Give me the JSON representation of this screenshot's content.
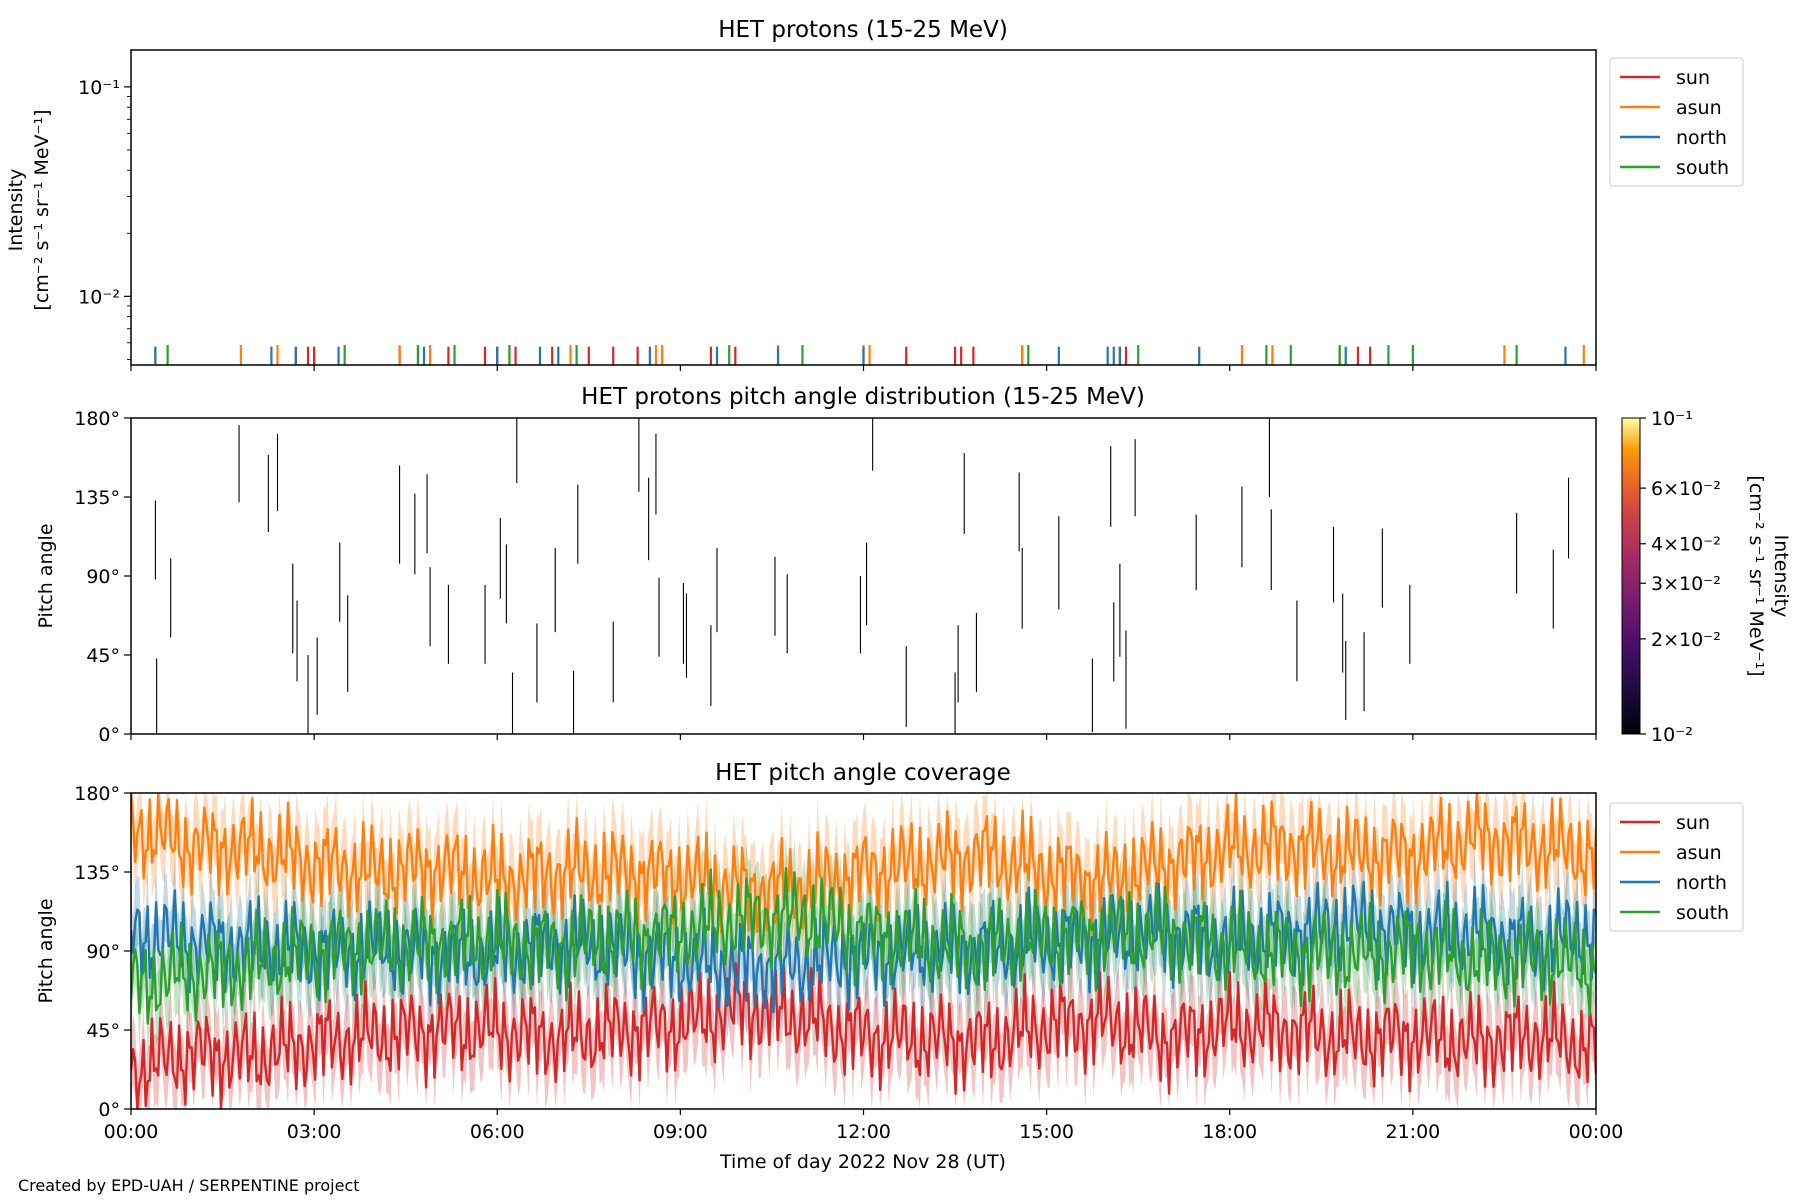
{
  "figure": {
    "credit": "Created by EPD-UAH / SERPENTINE project",
    "xlabel": "Time of day 2022 Nov 28 (UT)",
    "x_ticks": [
      "00:00",
      "03:00",
      "06:00",
      "09:00",
      "12:00",
      "15:00",
      "18:00",
      "21:00",
      "00:00"
    ]
  },
  "colors": {
    "sun": "#d62728",
    "asun": "#ff7f0e",
    "north": "#1f77b4",
    "south": "#2ca02c"
  },
  "chart_data": [
    {
      "type": "line",
      "title": "HET protons (15-25 MeV)",
      "ylabel_line1": "Intensity",
      "ylabel_line2": "[cm⁻² s⁻¹ sr⁻¹ MeV⁻¹]",
      "yscale": "log",
      "ylim": [
        0.0047,
        0.15
      ],
      "y_ticks": [
        {
          "value": 0.1,
          "label": "10⁻¹"
        },
        {
          "value": 0.01,
          "label": "10⁻²"
        }
      ],
      "xlim_hours": [
        0,
        24
      ],
      "legend": [
        "sun",
        "asun",
        "north",
        "south"
      ],
      "legend_position": "outside-top-right",
      "series": [
        {
          "name": "sun",
          "value": 0.0055,
          "spikes_hours": [
            0.4,
            2.7,
            2.9,
            3.0,
            4.4,
            5.2,
            5.8,
            6.0,
            6.3,
            6.9,
            7.5,
            7.9,
            8.3,
            8.7,
            9.5,
            9.9,
            12.7,
            13.5,
            13.6,
            13.8,
            14.6,
            16.2,
            16.3,
            18.7,
            19.8,
            20.1,
            20.3
          ]
        },
        {
          "name": "asun",
          "value": 0.0056,
          "spikes_hours": [
            1.8,
            2.4,
            4.4,
            4.9,
            6.2,
            7.2,
            8.6,
            8.7,
            10.6,
            12.0,
            12.1,
            14.6,
            18.2,
            18.7,
            22.5,
            23.8
          ]
        },
        {
          "name": "north",
          "value": 0.0055,
          "spikes_hours": [
            0.4,
            2.3,
            2.7,
            3.4,
            4.8,
            6.0,
            6.7,
            7.0,
            8.5,
            9.6,
            10.6,
            12.0,
            15.2,
            16.0,
            16.1,
            16.2,
            17.5,
            19.9,
            23.5
          ]
        },
        {
          "name": "south",
          "value": 0.0056,
          "spikes_hours": [
            0.6,
            3.5,
            4.7,
            5.3,
            6.2,
            7.3,
            9.8,
            11.0,
            14.7,
            16.5,
            18.6,
            19.0,
            19.8,
            20.6,
            21.0,
            22.7
          ]
        }
      ]
    },
    {
      "type": "heatmap",
      "title": "HET protons pitch angle distribution (15-25 MeV)",
      "ylabel": "Pitch angle",
      "ylim": [
        0,
        180
      ],
      "y_ticks": [
        {
          "value": 0,
          "label": "0°"
        },
        {
          "value": 45,
          "label": "45°"
        },
        {
          "value": 90,
          "label": "90°"
        },
        {
          "value": 135,
          "label": "135°"
        },
        {
          "value": 180,
          "label": "180°"
        }
      ],
      "xlim_hours": [
        0,
        24
      ],
      "colorbar": {
        "label_line1": "Intensity",
        "label_line2": "[cm⁻² s⁻¹ sr⁻¹ MeV⁻¹]",
        "scale": "log",
        "range": [
          0.01,
          0.1
        ],
        "colormap": "inferno",
        "ticks": [
          {
            "value": 0.1,
            "label": "10⁻¹"
          },
          {
            "value": 0.06,
            "label": "6×10⁻²"
          },
          {
            "value": 0.04,
            "label": "4×10⁻²"
          },
          {
            "value": 0.03,
            "label": "3×10⁻²"
          },
          {
            "value": 0.02,
            "label": "2×10⁻²"
          },
          {
            "value": 0.01,
            "label": "10⁻²"
          }
        ]
      },
      "segments": [
        {
          "t": 0.4,
          "lo": 88,
          "hi": 133
        },
        {
          "t": 0.42,
          "lo": 0,
          "hi": 43
        },
        {
          "t": 0.65,
          "lo": 55,
          "hi": 100
        },
        {
          "t": 1.77,
          "lo": 132,
          "hi": 176
        },
        {
          "t": 2.25,
          "lo": 115,
          "hi": 159
        },
        {
          "t": 2.4,
          "lo": 127,
          "hi": 171
        },
        {
          "t": 2.65,
          "lo": 46,
          "hi": 97
        },
        {
          "t": 2.72,
          "lo": 30,
          "hi": 76
        },
        {
          "t": 2.9,
          "lo": 0,
          "hi": 45
        },
        {
          "t": 3.05,
          "lo": 11,
          "hi": 55
        },
        {
          "t": 3.42,
          "lo": 64,
          "hi": 109
        },
        {
          "t": 3.55,
          "lo": 24,
          "hi": 79
        },
        {
          "t": 4.4,
          "lo": 97,
          "hi": 153
        },
        {
          "t": 4.65,
          "lo": 91,
          "hi": 137
        },
        {
          "t": 4.85,
          "lo": 103,
          "hi": 148
        },
        {
          "t": 4.9,
          "lo": 50,
          "hi": 95
        },
        {
          "t": 5.2,
          "lo": 40,
          "hi": 85
        },
        {
          "t": 5.8,
          "lo": 40,
          "hi": 85
        },
        {
          "t": 6.05,
          "lo": 77,
          "hi": 123
        },
        {
          "t": 6.15,
          "lo": 63,
          "hi": 108
        },
        {
          "t": 6.25,
          "lo": 0,
          "hi": 35
        },
        {
          "t": 6.32,
          "lo": 143,
          "hi": 180
        },
        {
          "t": 6.65,
          "lo": 18,
          "hi": 63
        },
        {
          "t": 6.95,
          "lo": 58,
          "hi": 106
        },
        {
          "t": 7.25,
          "lo": 0,
          "hi": 36
        },
        {
          "t": 7.32,
          "lo": 97,
          "hi": 142
        },
        {
          "t": 7.9,
          "lo": 18,
          "hi": 64
        },
        {
          "t": 8.32,
          "lo": 138,
          "hi": 180
        },
        {
          "t": 8.48,
          "lo": 99,
          "hi": 146
        },
        {
          "t": 8.6,
          "lo": 125,
          "hi": 171
        },
        {
          "t": 8.65,
          "lo": 44,
          "hi": 89
        },
        {
          "t": 9.05,
          "lo": 40,
          "hi": 86
        },
        {
          "t": 9.1,
          "lo": 32,
          "hi": 80
        },
        {
          "t": 9.5,
          "lo": 16,
          "hi": 62
        },
        {
          "t": 9.6,
          "lo": 58,
          "hi": 106
        },
        {
          "t": 10.55,
          "lo": 56,
          "hi": 101
        },
        {
          "t": 10.75,
          "lo": 46,
          "hi": 91
        },
        {
          "t": 11.95,
          "lo": 46,
          "hi": 90
        },
        {
          "t": 12.05,
          "lo": 62,
          "hi": 109
        },
        {
          "t": 12.15,
          "lo": 150,
          "hi": 180
        },
        {
          "t": 12.7,
          "lo": 4,
          "hi": 50
        },
        {
          "t": 13.5,
          "lo": 0,
          "hi": 35
        },
        {
          "t": 13.55,
          "lo": 18,
          "hi": 62
        },
        {
          "t": 13.65,
          "lo": 114,
          "hi": 160
        },
        {
          "t": 13.85,
          "lo": 24,
          "hi": 69
        },
        {
          "t": 14.55,
          "lo": 104,
          "hi": 149
        },
        {
          "t": 14.6,
          "lo": 60,
          "hi": 106
        },
        {
          "t": 15.2,
          "lo": 71,
          "hi": 124
        },
        {
          "t": 15.75,
          "lo": 1,
          "hi": 43
        },
        {
          "t": 16.05,
          "lo": 118,
          "hi": 164
        },
        {
          "t": 16.1,
          "lo": 30,
          "hi": 75
        },
        {
          "t": 16.2,
          "lo": 44,
          "hi": 97
        },
        {
          "t": 16.3,
          "lo": 3,
          "hi": 59
        },
        {
          "t": 16.45,
          "lo": 124,
          "hi": 168
        },
        {
          "t": 17.45,
          "lo": 82,
          "hi": 125
        },
        {
          "t": 18.2,
          "lo": 95,
          "hi": 141
        },
        {
          "t": 18.65,
          "lo": 135,
          "hi": 180
        },
        {
          "t": 18.68,
          "lo": 82,
          "hi": 128
        },
        {
          "t": 19.1,
          "lo": 30,
          "hi": 76
        },
        {
          "t": 19.7,
          "lo": 75,
          "hi": 118
        },
        {
          "t": 19.85,
          "lo": 35,
          "hi": 80
        },
        {
          "t": 19.9,
          "lo": 8,
          "hi": 53
        },
        {
          "t": 20.2,
          "lo": 13,
          "hi": 58
        },
        {
          "t": 20.5,
          "lo": 72,
          "hi": 117
        },
        {
          "t": 20.95,
          "lo": 40,
          "hi": 85
        },
        {
          "t": 22.7,
          "lo": 80,
          "hi": 126
        },
        {
          "t": 23.3,
          "lo": 60,
          "hi": 105
        },
        {
          "t": 23.55,
          "lo": 100,
          "hi": 146
        }
      ]
    },
    {
      "type": "line",
      "title": "HET pitch angle coverage",
      "ylabel": "Pitch angle",
      "ylim": [
        0,
        180
      ],
      "y_ticks": [
        {
          "value": 0,
          "label": "0°"
        },
        {
          "value": 45,
          "label": "45°"
        },
        {
          "value": 90,
          "label": "90°"
        },
        {
          "value": 135,
          "label": "135°"
        },
        {
          "value": 180,
          "label": "180°"
        }
      ],
      "xlim_hours": [
        0,
        24
      ],
      "legend": [
        "sun",
        "asun",
        "north",
        "south"
      ],
      "legend_position": "outside-top-right",
      "band_half_width_deg": 20,
      "series": [
        {
          "name": "sun",
          "x_hours": [
            0,
            1,
            2,
            3,
            4,
            5,
            6,
            7,
            8,
            9,
            10,
            11,
            12,
            13,
            14,
            15,
            16,
            17,
            18,
            19,
            20,
            21,
            22,
            23,
            24
          ],
          "values": [
            22,
            32,
            30,
            38,
            42,
            45,
            45,
            40,
            45,
            48,
            58,
            52,
            42,
            40,
            38,
            48,
            50,
            40,
            48,
            45,
            40,
            42,
            38,
            42,
            35
          ]
        },
        {
          "name": "asun",
          "x_hours": [
            0,
            1,
            2,
            3,
            4,
            5,
            6,
            7,
            8,
            9,
            10,
            11,
            12,
            13,
            14,
            15,
            16,
            17,
            18,
            19,
            20,
            21,
            22,
            23,
            24
          ],
          "values": [
            160,
            150,
            148,
            140,
            135,
            138,
            130,
            135,
            135,
            132,
            125,
            125,
            135,
            140,
            145,
            135,
            130,
            140,
            148,
            150,
            145,
            145,
            155,
            150,
            145
          ]
        },
        {
          "name": "north",
          "x_hours": [
            0,
            1,
            2,
            3,
            4,
            5,
            6,
            7,
            8,
            9,
            10,
            11,
            12,
            13,
            14,
            15,
            16,
            17,
            18,
            19,
            20,
            21,
            22,
            23,
            24
          ],
          "values": [
            100,
            95,
            92,
            90,
            92,
            88,
            88,
            95,
            90,
            85,
            80,
            82,
            88,
            90,
            92,
            95,
            98,
            100,
            95,
            100,
            105,
            100,
            100,
            95,
            100
          ]
        },
        {
          "name": "south",
          "x_hours": [
            0,
            1,
            2,
            3,
            4,
            5,
            6,
            7,
            8,
            9,
            10,
            11,
            12,
            13,
            14,
            15,
            16,
            17,
            18,
            19,
            20,
            21,
            22,
            23,
            24
          ],
          "values": [
            70,
            78,
            82,
            90,
            92,
            95,
            95,
            92,
            98,
            100,
            108,
            110,
            100,
            95,
            92,
            98,
            100,
            100,
            92,
            90,
            88,
            92,
            85,
            88,
            80
          ]
        }
      ]
    }
  ]
}
